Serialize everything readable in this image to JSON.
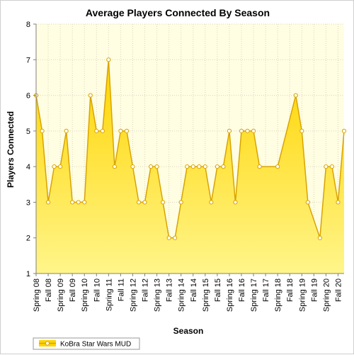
{
  "chart_data": {
    "type": "area",
    "title": "Average Players Connected By Season",
    "xlabel": "Season",
    "ylabel": "Players Connected",
    "ylim": [
      1,
      8
    ],
    "yticks": [
      1,
      2,
      3,
      4,
      5,
      6,
      7,
      8
    ],
    "grid": true,
    "legend_position": "bottom-left",
    "x_tick_labels": [
      "Spring 08",
      "Fall 08",
      "Spring 09",
      "Fall 09",
      "Spring 10",
      "Fall 10",
      "Spring 11",
      "Fall 11",
      "Spring 12",
      "Fall 12",
      "Spring 13",
      "Fall 13",
      "Spring 14",
      "Fall 14",
      "Spring 15",
      "Fall 15",
      "Spring 16",
      "Fall 16",
      "Spring 17",
      "Fall 17",
      "Spring 18",
      "Fall 18",
      "Spring 19",
      "Fall 19",
      "Spring 20",
      "Fall 20"
    ],
    "colors": {
      "fill_top": "#ffd400",
      "fill_bottom": "#fff58a",
      "line": "#d9a300",
      "marker_fill": "#ffffff",
      "plot_bg": "#fffde2",
      "grid": "#d8d8c0"
    },
    "series": [
      {
        "name": "KoBra Star Wars MUD",
        "points": [
          [
            0,
            6
          ],
          [
            0.5,
            5
          ],
          [
            1,
            3
          ],
          [
            1.5,
            4
          ],
          [
            2,
            4
          ],
          [
            2.5,
            5
          ],
          [
            3,
            3
          ],
          [
            3.5,
            3
          ],
          [
            4,
            3
          ],
          [
            4.5,
            6
          ],
          [
            5,
            5
          ],
          [
            5.5,
            5
          ],
          [
            6,
            7
          ],
          [
            6.5,
            4
          ],
          [
            7,
            5
          ],
          [
            7.5,
            5
          ],
          [
            8,
            4
          ],
          [
            8.5,
            3
          ],
          [
            9,
            3
          ],
          [
            9.5,
            4
          ],
          [
            10,
            4
          ],
          [
            10.5,
            3
          ],
          [
            11,
            2
          ],
          [
            11.5,
            2
          ],
          [
            12,
            3
          ],
          [
            12.5,
            4
          ],
          [
            13,
            4
          ],
          [
            13.5,
            4
          ],
          [
            14,
            4
          ],
          [
            14.5,
            3
          ],
          [
            15,
            4
          ],
          [
            15.5,
            4
          ],
          [
            16,
            5
          ],
          [
            16.5,
            3
          ],
          [
            17,
            5
          ],
          [
            17.5,
            5
          ],
          [
            18,
            5
          ],
          [
            18.5,
            4
          ],
          [
            20,
            4
          ],
          [
            21.5,
            6
          ],
          [
            22,
            5
          ],
          [
            22.5,
            3
          ],
          [
            23.5,
            2
          ],
          [
            24,
            4
          ],
          [
            24.5,
            4
          ],
          [
            25,
            3
          ],
          [
            25.5,
            5
          ]
        ]
      }
    ]
  }
}
